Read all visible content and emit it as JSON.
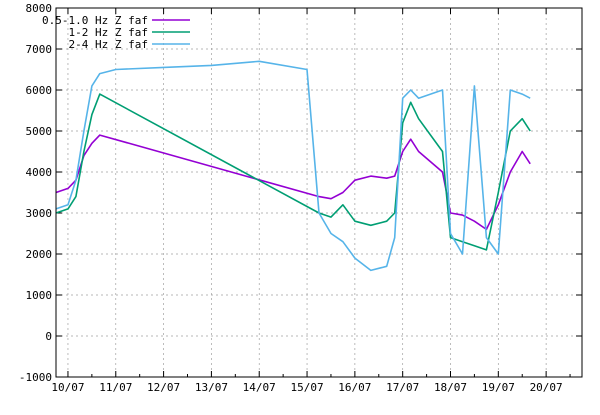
{
  "chart_data": {
    "type": "line",
    "title": "",
    "xlabel": "",
    "ylabel": "",
    "ylim": [
      -1000,
      8000
    ],
    "xlim": [
      "09/07 18:00",
      "20/07 18:00"
    ],
    "grid": true,
    "legend_position": "top-left",
    "y_ticks": [
      "-1000",
      "0",
      "1000",
      "2000",
      "3000",
      "4000",
      "5000",
      "6000",
      "7000",
      "8000"
    ],
    "x_ticks": [
      "10/07",
      "11/07",
      "12/07",
      "13/07",
      "14/07",
      "15/07",
      "16/07",
      "17/07",
      "18/07",
      "19/07",
      "20/07"
    ],
    "series": [
      {
        "name": "0.5-1.0 Hz Z faf",
        "color": "#9400d3",
        "x": [
          "09/07 18:00",
          "10/07 00:00",
          "10/07 04:00",
          "10/07 08:00",
          "10/07 12:00",
          "10/07 16:00",
          "15/07 06:00",
          "15/07 12:00",
          "15/07 18:00",
          "16/07 00:00",
          "16/07 08:00",
          "16/07 16:00",
          "16/07 20:00",
          "17/07 00:00",
          "17/07 04:00",
          "17/07 08:00",
          "17/07 20:00",
          "18/07 00:00",
          "18/07 06:00",
          "18/07 12:00",
          "18/07 18:00",
          "19/07 00:00",
          "19/07 06:00",
          "19/07 12:00",
          "19/07 16:00"
        ],
        "y": [
          3500,
          3600,
          3800,
          4400,
          4700,
          4900,
          3400,
          3350,
          3500,
          3800,
          3900,
          3850,
          3900,
          4500,
          4800,
          4500,
          4000,
          3000,
          2950,
          2800,
          2600,
          3200,
          4000,
          4500,
          4200
        ]
      },
      {
        "name": "1-2 Hz Z faf",
        "color": "#009e73",
        "x": [
          "09/07 18:00",
          "10/07 00:00",
          "10/07 04:00",
          "10/07 08:00",
          "10/07 12:00",
          "10/07 16:00",
          "15/07 06:00",
          "15/07 12:00",
          "15/07 18:00",
          "16/07 00:00",
          "16/07 08:00",
          "16/07 16:00",
          "16/07 20:00",
          "17/07 00:00",
          "17/07 04:00",
          "17/07 08:00",
          "17/07 20:00",
          "18/07 00:00",
          "18/07 06:00",
          "18/07 12:00",
          "18/07 18:00",
          "19/07 00:00",
          "19/07 06:00",
          "19/07 12:00",
          "19/07 16:00"
        ],
        "y": [
          3000,
          3100,
          3400,
          4500,
          5400,
          5900,
          3000,
          2900,
          3200,
          2800,
          2700,
          2800,
          3000,
          5200,
          5700,
          5300,
          4500,
          2400,
          2300,
          2200,
          2100,
          3500,
          5000,
          5300,
          5000
        ]
      },
      {
        "name": "2-4 Hz Z faf",
        "color": "#56b4e9",
        "x": [
          "09/07 18:00",
          "10/07 00:00",
          "10/07 04:00",
          "10/07 08:00",
          "10/07 12:00",
          "10/07 16:00",
          "11/07 00:00",
          "12/07 00:00",
          "13/07 00:00",
          "14/07 00:00",
          "15/07 00:00",
          "15/07 06:00",
          "15/07 12:00",
          "15/07 18:00",
          "16/07 00:00",
          "16/07 08:00",
          "16/07 16:00",
          "16/07 20:00",
          "17/07 00:00",
          "17/07 04:00",
          "17/07 08:00",
          "17/07 20:00",
          "18/07 00:00",
          "18/07 06:00",
          "18/07 12:00",
          "18/07 18:00",
          "19/07 00:00",
          "19/07 06:00",
          "19/07 12:00",
          "19/07 16:00"
        ],
        "y": [
          3100,
          3200,
          3800,
          5000,
          6100,
          6400,
          6500,
          6550,
          6600,
          6700,
          6500,
          3000,
          2500,
          2300,
          1900,
          1600,
          1700,
          2400,
          5800,
          6000,
          5800,
          6000,
          2500,
          2000,
          6100,
          2400,
          2000,
          6000,
          5900,
          5800
        ]
      }
    ]
  }
}
